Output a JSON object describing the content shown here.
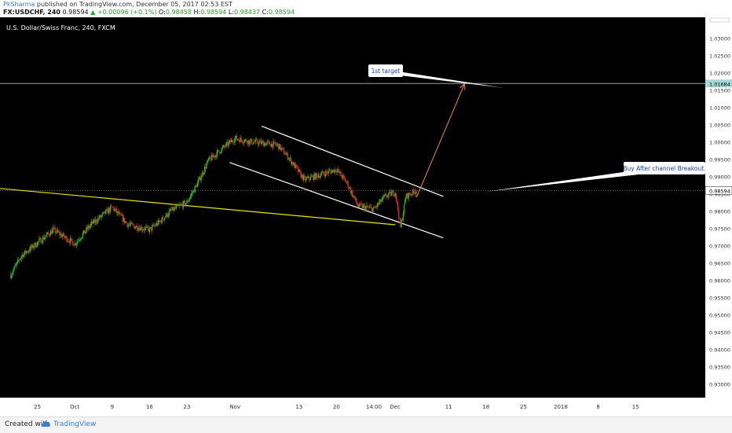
{
  "header": {
    "author": "PkSharma",
    "published": " published on TradingView.com, December 05, 2017 02:53 EST",
    "symbol": "FX:USDCHF, 240",
    "last": "0.98594",
    "change": "▲ +0.00096 (+0.1%)",
    "o_label": "O:",
    "o_value": "0.98458",
    "h_label": "H:",
    "h_value": "0.98594",
    "l_label": "L:",
    "l_value": "0.98437",
    "c_label": "C:",
    "c_value": "0.98594"
  },
  "footer": {
    "created_label": "Created with",
    "brand": "TradingView"
  },
  "colors": {
    "background": "#000000",
    "bull": "#2db52d",
    "bear": "#e02424",
    "trendline": "#e6e600",
    "channel": "#ffffff",
    "target_line": "#66b3b3",
    "arrow": "#e8913a",
    "price_line": "#9a9a9a"
  },
  "chart_data": {
    "type": "candlestick",
    "title": "U.S. Dollar/Swiss Franc, 240, FXCM",
    "ylim": [
      0.926,
      1.036
    ],
    "ytick_labels": [
      "1.03000",
      "1.02500",
      "1.02000",
      "1.01500",
      "1.01000",
      "1.00500",
      "1.00000",
      "0.99500",
      "0.99000",
      "0.98500",
      "0.98000",
      "0.97500",
      "0.97000",
      "0.96500",
      "0.96000",
      "0.95500",
      "0.95000",
      "0.94500",
      "0.94000",
      "0.93500",
      "0.93000"
    ],
    "ytick_values": [
      1.03,
      1.025,
      1.02,
      1.015,
      1.01,
      1.005,
      1.0,
      0.995,
      0.99,
      0.985,
      0.98,
      0.975,
      0.97,
      0.965,
      0.96,
      0.955,
      0.95,
      0.945,
      0.94,
      0.935,
      0.93
    ],
    "xtick_labels": [
      "25",
      "Oct",
      "9",
      "16",
      "23",
      "Nov",
      "13",
      "20",
      "14:00",
      "Dec",
      "11",
      "18",
      "25",
      "2018",
      "8",
      "15"
    ],
    "xtick_dates": [
      "2017-09-25",
      "2017-10-02",
      "2017-10-09",
      "2017-10-16",
      "2017-10-23",
      "2017-11-01",
      "2017-11-13",
      "2017-11-20",
      "2017-11-27",
      "2017-12-01",
      "2017-12-11",
      "2017-12-18",
      "2017-12-25",
      "2018-01-01",
      "2018-01-08",
      "2018-01-15"
    ],
    "price_path": [
      [
        "2017-09-20",
        0.9615
      ],
      [
        "2017-09-22",
        0.967
      ],
      [
        "2017-09-26",
        0.972
      ],
      [
        "2017-09-28",
        0.9745
      ],
      [
        "2017-10-02",
        0.9705
      ],
      [
        "2017-10-05",
        0.976
      ],
      [
        "2017-10-09",
        0.981
      ],
      [
        "2017-10-12",
        0.976
      ],
      [
        "2017-10-16",
        0.9745
      ],
      [
        "2017-10-18",
        0.977
      ],
      [
        "2017-10-20",
        0.98
      ],
      [
        "2017-10-23",
        0.9825
      ],
      [
        "2017-10-25",
        0.988
      ],
      [
        "2017-10-27",
        0.9945
      ],
      [
        "2017-10-30",
        0.9985
      ],
      [
        "2017-11-01",
        1.001
      ],
      [
        "2017-11-04",
        1.0
      ],
      [
        "2017-11-07",
        0.9995
      ],
      [
        "2017-11-09",
        0.999
      ],
      [
        "2017-11-11",
        0.9955
      ],
      [
        "2017-11-14",
        0.989
      ],
      [
        "2017-11-17",
        0.9905
      ],
      [
        "2017-11-20",
        0.992
      ],
      [
        "2017-11-22",
        0.988
      ],
      [
        "2017-11-24",
        0.9815
      ],
      [
        "2017-11-27",
        0.9805
      ],
      [
        "2017-11-29",
        0.984
      ],
      [
        "2017-12-01",
        0.9855
      ],
      [
        "2017-12-02",
        0.9752
      ],
      [
        "2017-12-03",
        0.9842
      ],
      [
        "2017-12-05",
        0.98594
      ]
    ],
    "last_price": "0.98594",
    "target_price": "1.01684",
    "annotations": {
      "target_label": "1st target",
      "breakout_label": "Buy After channel Breakout."
    },
    "trendline": {
      "from": [
        "2017-09-18",
        0.9865
      ],
      "to": [
        "2017-12-01",
        0.976
      ]
    },
    "channel_upper": {
      "from": [
        "2017-11-06",
        1.0045
      ],
      "to": [
        "2017-12-10",
        0.9842
      ]
    },
    "channel_lower": {
      "from": [
        "2017-10-31",
        0.994
      ],
      "to": [
        "2017-12-10",
        0.9722
      ]
    },
    "target_arrow": {
      "from": [
        "2017-12-05",
        0.984
      ],
      "to": [
        "2017-12-14",
        1.0168
      ]
    },
    "grid": false,
    "legend": "none"
  }
}
